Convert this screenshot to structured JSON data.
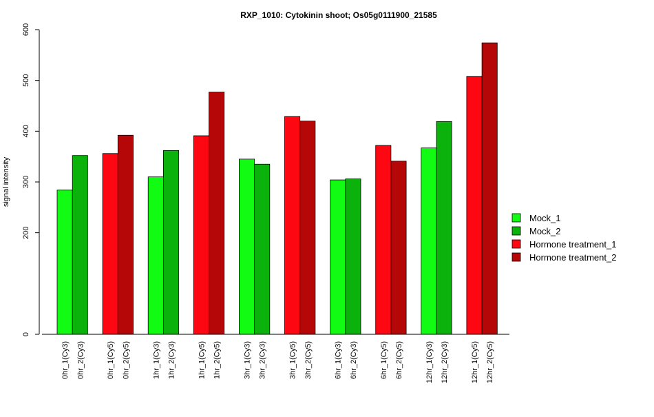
{
  "chart_data": {
    "type": "bar",
    "title": "RXP_1010: Cytokinin shoot; Os05g0111900_21585",
    "xlabel": "",
    "ylabel": "signal intensity",
    "ylim": [
      0,
      600
    ],
    "yticks": [
      0,
      200,
      300,
      400,
      500,
      600
    ],
    "grid": false,
    "legend_position": "right",
    "categories": [
      "0hr_1(Cy3)",
      "0hr_2(Cy3)",
      "0hr_1(Cy5)",
      "0hr_2(Cy5)",
      "1hr_1(Cy3)",
      "1hr_2(Cy3)",
      "1hr_1(Cy5)",
      "1hr_2(Cy5)",
      "3hr_1(Cy3)",
      "3hr_2(Cy3)",
      "3hr_1(Cy5)",
      "3hr_2(Cy5)",
      "6hr_1(Cy3)",
      "6hr_2(Cy3)",
      "6hr_1(Cy5)",
      "6hr_2(Cy5)",
      "12hr_1(Cy3)",
      "12hr_2(Cy3)",
      "12hr_1(Cy5)",
      "12hr_2(Cy5)"
    ],
    "values": [
      284,
      352,
      356,
      392,
      310,
      362,
      391,
      477,
      345,
      335,
      429,
      420,
      304,
      306,
      372,
      341,
      367,
      419,
      508,
      574
    ],
    "bar_series_index": [
      0,
      1,
      2,
      3,
      0,
      1,
      2,
      3,
      0,
      1,
      2,
      3,
      0,
      1,
      2,
      3,
      0,
      1,
      2,
      3
    ],
    "series": [
      {
        "name": "Mock_1",
        "color": "#12fb12"
      },
      {
        "name": "Mock_2",
        "color": "#0bb20b"
      },
      {
        "name": "Hormone treatment_1",
        "color": "#fc0712"
      },
      {
        "name": "Hormone treatment_2",
        "color": "#b50707"
      }
    ]
  }
}
